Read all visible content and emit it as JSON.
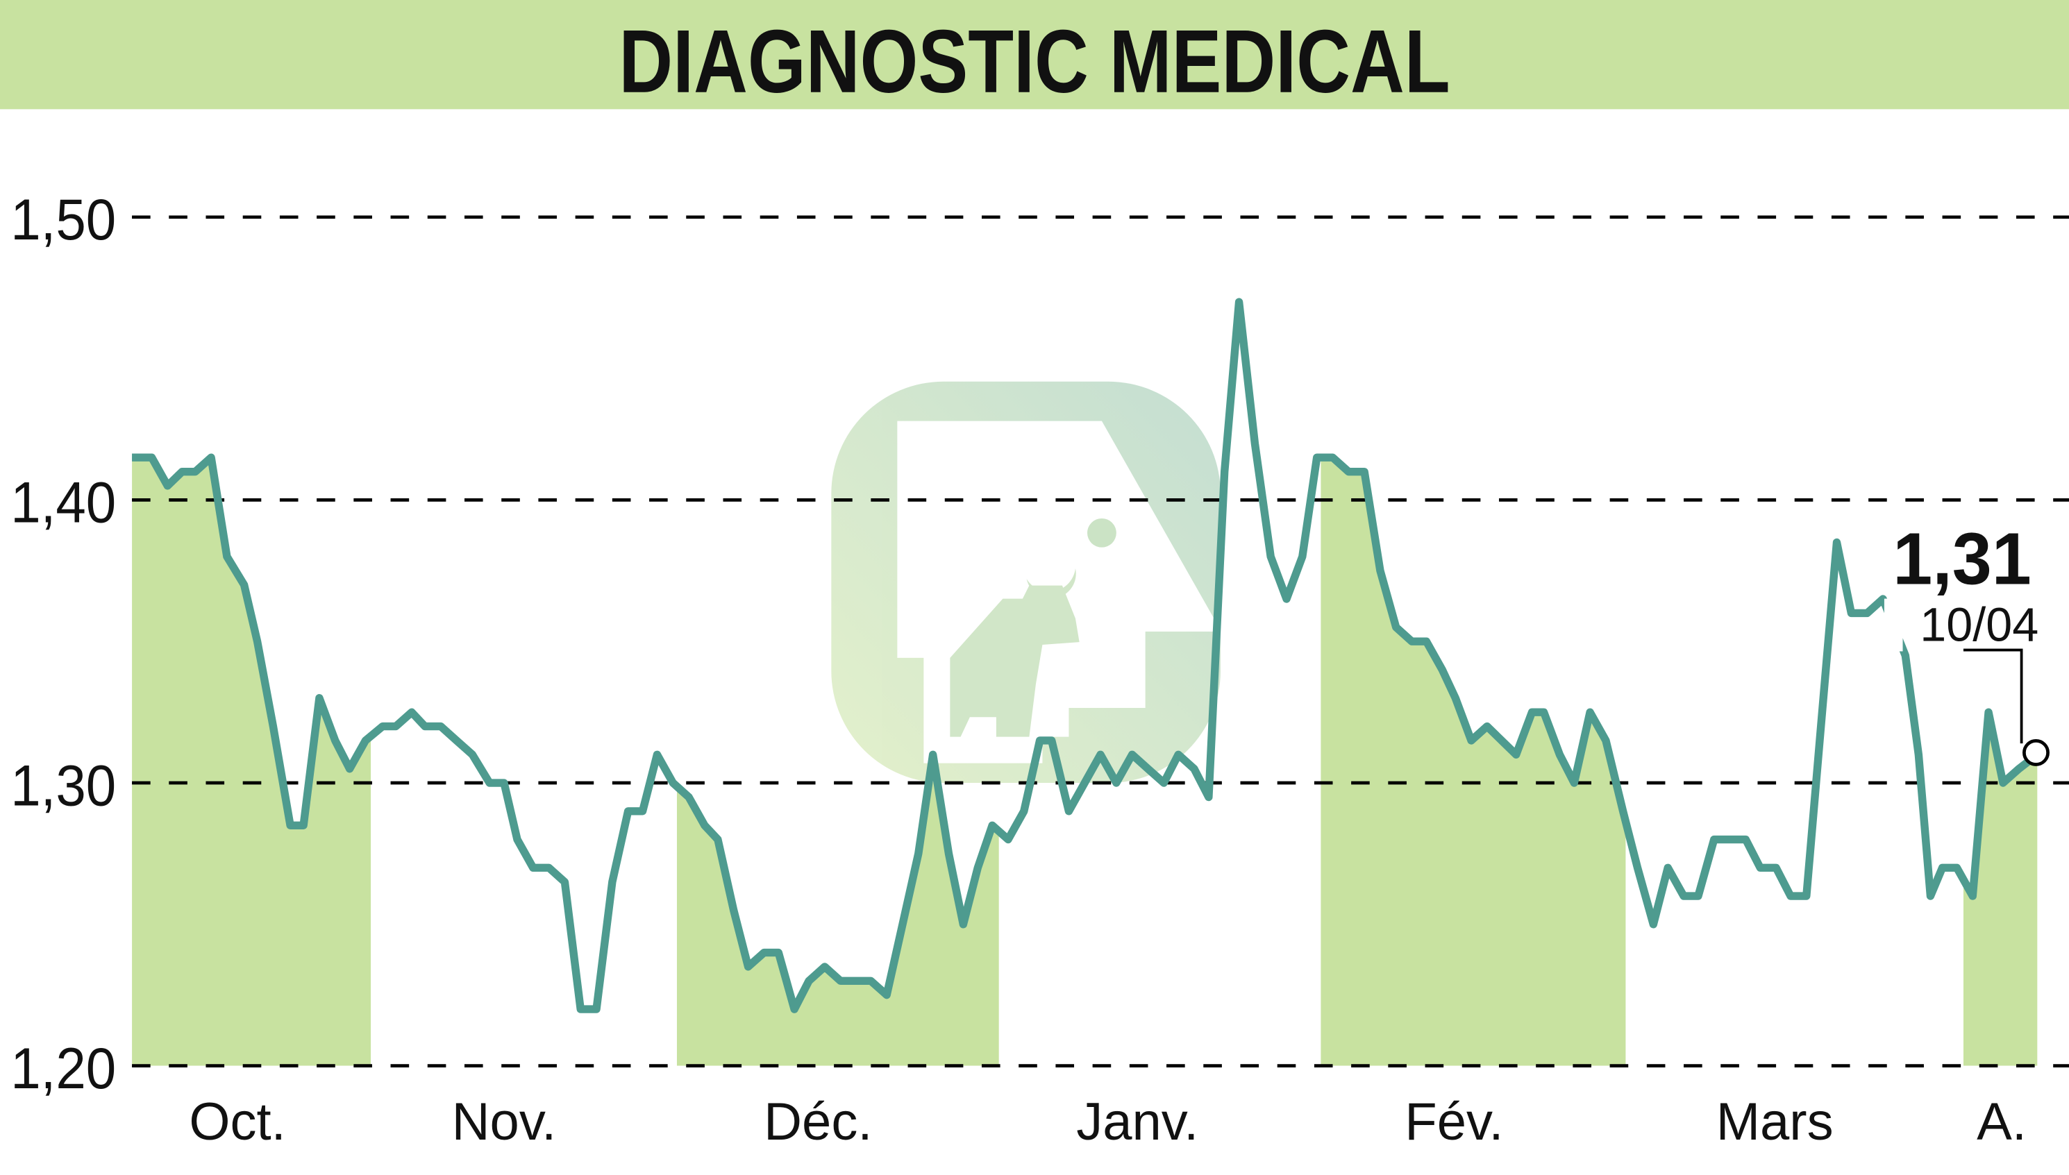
{
  "header": {
    "title": "DIAGNOSTIC MEDICAL",
    "background_color": "#c8e2a0"
  },
  "colors": {
    "line": "#4e9b8f",
    "area_fill": "#c8e2a0",
    "grid": "#000000",
    "watermark": "#c9e2c2"
  },
  "last_point": {
    "value_label": "1,31",
    "date_label": "10/04"
  },
  "chart_data": {
    "type": "line",
    "title": "DIAGNOSTIC MEDICAL",
    "xlabel": "",
    "ylabel": "",
    "ylim": [
      1.2,
      1.5
    ],
    "yticks": [
      1.2,
      1.3,
      1.4,
      1.5
    ],
    "ytick_labels": [
      "1,20",
      "1,30",
      "1,40",
      "1,50"
    ],
    "grid": "horizontal dashed",
    "legend": "none",
    "categories": [
      "Oct.",
      "Nov.",
      "Déc.",
      "Janv.",
      "Fév.",
      "Mars",
      "A."
    ],
    "shaded_months": [
      "Oct.",
      "Déc.",
      "Fév.",
      "A."
    ],
    "annotation": {
      "value": "1,31",
      "date": "10/04"
    },
    "series": [
      {
        "name": "DIAGNOSTIC MEDICAL",
        "x": [
          100,
          115,
          127,
          138,
          148,
          160,
          172,
          185,
          195,
          207,
          220,
          230,
          242,
          254,
          265,
          277,
          290,
          300,
          312,
          322,
          334,
          346,
          358,
          371,
          382,
          392,
          404,
          416,
          428,
          440,
          452,
          464,
          476,
          487,
          498,
          510,
          522,
          534,
          544,
          556,
          567,
          579,
          590,
          602,
          613,
          625,
          637,
          648,
          660,
          672,
          684,
          696,
          707,
          719,
          730,
          741,
          752,
          764,
          776,
          788,
          797,
          810,
          822,
          834,
          846,
          858,
          870,
          882,
          893,
          905,
          916,
          928,
          939,
          951,
          963,
          975,
          987,
          998,
          1010,
          1022,
          1034,
          1046,
          1058,
          1070,
          1081,
          1093,
          1103,
          1115,
          1127,
          1138,
          1149,
          1161,
          1170,
          1182,
          1193,
          1205,
          1217,
          1230,
          1241,
          1253,
          1264,
          1276,
          1287,
          1299,
          1311,
          1323,
          1334,
          1346,
          1357,
          1369,
          1380,
          1392,
          1403,
          1415,
          1427,
          1444,
          1454,
          1463,
          1472,
          1483,
          1495,
          1507,
          1518,
          1530,
          1544
        ],
        "values": [
          1.415,
          1.415,
          1.405,
          1.41,
          1.41,
          1.415,
          1.38,
          1.37,
          1.35,
          1.32,
          1.285,
          1.285,
          1.33,
          1.315,
          1.305,
          1.315,
          1.32,
          1.32,
          1.325,
          1.32,
          1.32,
          1.315,
          1.31,
          1.3,
          1.3,
          1.28,
          1.27,
          1.27,
          1.265,
          1.22,
          1.22,
          1.265,
          1.29,
          1.29,
          1.31,
          1.3,
          1.295,
          1.285,
          1.28,
          1.255,
          1.235,
          1.24,
          1.24,
          1.22,
          1.23,
          1.235,
          1.23,
          1.23,
          1.23,
          1.225,
          1.25,
          1.275,
          1.31,
          1.275,
          1.25,
          1.27,
          1.285,
          1.28,
          1.29,
          1.315,
          1.315,
          1.29,
          1.3,
          1.31,
          1.3,
          1.31,
          1.305,
          1.3,
          1.31,
          1.305,
          1.295,
          1.41,
          1.47,
          1.42,
          1.38,
          1.365,
          1.38,
          1.415,
          1.415,
          1.41,
          1.41,
          1.375,
          1.355,
          1.35,
          1.35,
          1.34,
          1.33,
          1.315,
          1.32,
          1.315,
          1.31,
          1.325,
          1.325,
          1.31,
          1.3,
          1.325,
          1.315,
          1.29,
          1.27,
          1.25,
          1.27,
          1.26,
          1.26,
          1.28,
          1.28,
          1.28,
          1.27,
          1.27,
          1.26,
          1.26,
          1.32,
          1.385,
          1.36,
          1.36,
          1.365,
          1.345,
          1.31,
          1.26,
          1.27,
          1.27,
          1.26,
          1.325,
          1.3,
          1.305,
          1.31
        ]
      }
    ]
  }
}
